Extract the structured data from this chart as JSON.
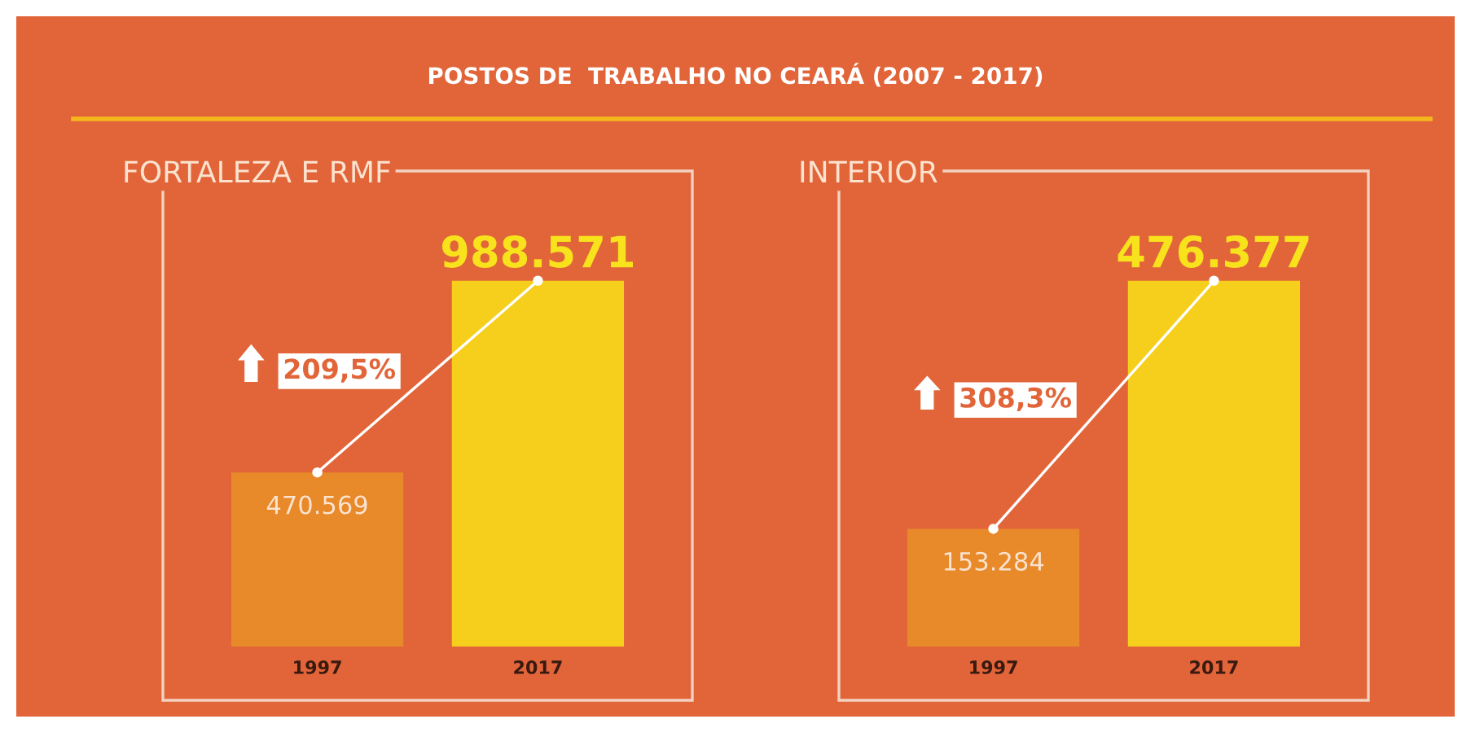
{
  "chart_data": [
    {
      "type": "bar",
      "title": "FORTALEZA E RMF",
      "categories": [
        "1997",
        "2017"
      ],
      "values": [
        470569,
        988571
      ],
      "colors": [
        "#e8892a",
        "#f5cf1c"
      ],
      "value_labels": [
        "470.569",
        "988.571"
      ],
      "tick_labels": "x",
      "grid": false,
      "legend": false,
      "annotations": [
        "POSTOS DE  TRABALHO NO CEARÁ (2007 - 2017)",
        "209,5%"
      ]
    },
    {
      "type": "bar",
      "title": "INTERIOR",
      "categories": [
        "1997",
        "2017"
      ],
      "values": [
        153284,
        476377
      ],
      "colors": [
        "#e8892a",
        "#f5cf1c"
      ],
      "value_labels": [
        "153.284",
        "476.377"
      ],
      "tick_labels": "x",
      "grid": false,
      "legend": false,
      "annotations": [
        "308,3%"
      ]
    }
  ]
}
